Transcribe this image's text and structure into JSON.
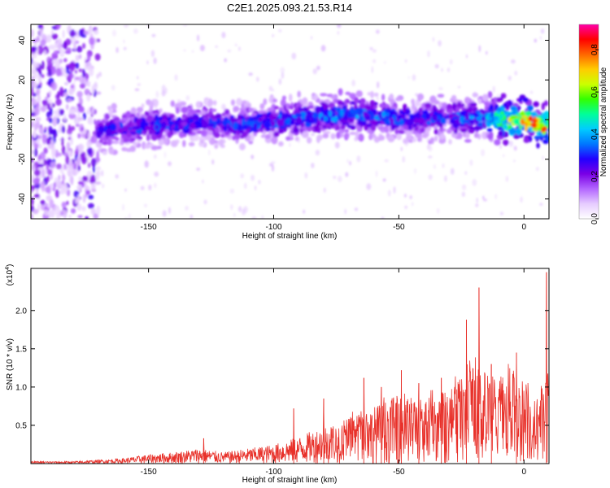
{
  "page_title": "C2E1.2025.093.21.53.R14",
  "chart_data": [
    {
      "type": "heatmap",
      "title": "C2E1.2025.093.21.53.R14",
      "xlabel": "Height of straight line (km)",
      "ylabel": "Frequency (Hz)",
      "xlim": [
        -197,
        10
      ],
      "ylim": [
        -50,
        48
      ],
      "x_ticks": [
        -150,
        -100,
        -50,
        0
      ],
      "x_tick_labels": [
        "-150",
        "-100",
        "-50",
        "0"
      ],
      "y_ticks": [
        -40,
        -20,
        0,
        20,
        40
      ],
      "y_tick_labels": [
        "-40",
        "-20",
        "0",
        "20",
        "40"
      ],
      "colorbar": {
        "label": "Normalized spectral amplitude",
        "range": [
          0,
          0.92
        ],
        "ticks": [
          0.0,
          0.2,
          0.4,
          0.6,
          0.8
        ],
        "tick_labels": [
          "0.0",
          "0.2",
          "0.4",
          "0.6",
          "0.8"
        ],
        "colors": [
          "#ffffff",
          "#e6ccff",
          "#b366ff",
          "#7a00e6",
          "#2200ff",
          "#0077ff",
          "#00ccff",
          "#00ff99",
          "#33ff00",
          "#ccff00",
          "#ffcc00",
          "#ff6600",
          "#ff0000",
          "#ff00aa"
        ]
      },
      "ridge": {
        "x": [
          -197,
          -170,
          -165,
          -150,
          -140,
          -130,
          -120,
          -110,
          -100,
          -90,
          -80,
          -70,
          -60,
          -50,
          -40,
          -30,
          -20,
          -15,
          -10,
          0,
          10
        ],
        "center_hz": [
          0,
          -6,
          -5,
          -3,
          -2,
          -1,
          -3,
          -2,
          -1,
          1,
          2,
          3,
          2,
          0,
          0,
          1,
          1,
          1,
          0,
          0,
          -4
        ],
        "peak_amplitude": [
          0.12,
          0.3,
          0.32,
          0.34,
          0.36,
          0.3,
          0.34,
          0.36,
          0.38,
          0.38,
          0.4,
          0.42,
          0.4,
          0.36,
          0.34,
          0.36,
          0.4,
          0.42,
          0.7,
          0.85,
          0.8
        ]
      },
      "noise_region_x": [
        -197,
        -170
      ],
      "grid": false
    },
    {
      "type": "line",
      "xlabel": "Height of straight line (km)",
      "ylabel": "SNR (10 * v/v)",
      "y_multiplier": "(x10",
      "y_multiplier_exp": "4",
      "y_multiplier_close": ")",
      "xlim": [
        -197,
        10
      ],
      "ylim": [
        0,
        2.55
      ],
      "x_ticks": [
        -150,
        -100,
        -50,
        0
      ],
      "x_tick_labels": [
        "-150",
        "-100",
        "-50",
        "0"
      ],
      "y_ticks": [
        0.5,
        1.0,
        1.5,
        2.0
      ],
      "y_tick_labels": [
        "0.5",
        "1.0",
        "1.5",
        "2.0"
      ],
      "series": [
        {
          "color": "#e8312a",
          "envelope_x": [
            -197,
            -180,
            -170,
            -160,
            -150,
            -140,
            -130,
            -120,
            -110,
            -100,
            -90,
            -80,
            -70,
            -60,
            -50,
            -40,
            -30,
            -25,
            -20,
            -15,
            -10,
            -5,
            0,
            5,
            10
          ],
          "envelope_y": [
            0.03,
            0.03,
            0.05,
            0.07,
            0.12,
            0.15,
            0.2,
            0.15,
            0.2,
            0.25,
            0.35,
            0.5,
            0.6,
            0.75,
            0.9,
            0.85,
            1.0,
            1.1,
            1.3,
            1.2,
            1.0,
            1.3,
            1.1,
            0.8,
            1.2
          ],
          "spikes": [
            {
              "x": -128,
              "y": 0.33
            },
            {
              "x": -92,
              "y": 0.72
            },
            {
              "x": -80,
              "y": 0.85
            },
            {
              "x": -64,
              "y": 1.12
            },
            {
              "x": -57,
              "y": 1.0
            },
            {
              "x": -49,
              "y": 1.22
            },
            {
              "x": -42,
              "y": 1.05
            },
            {
              "x": -33,
              "y": 1.12
            },
            {
              "x": -23,
              "y": 1.88
            },
            {
              "x": -18,
              "y": 2.3
            },
            {
              "x": -13,
              "y": 1.3
            },
            {
              "x": -3,
              "y": 1.45
            },
            {
              "x": 9,
              "y": 2.5
            }
          ]
        }
      ],
      "grid": false
    }
  ]
}
